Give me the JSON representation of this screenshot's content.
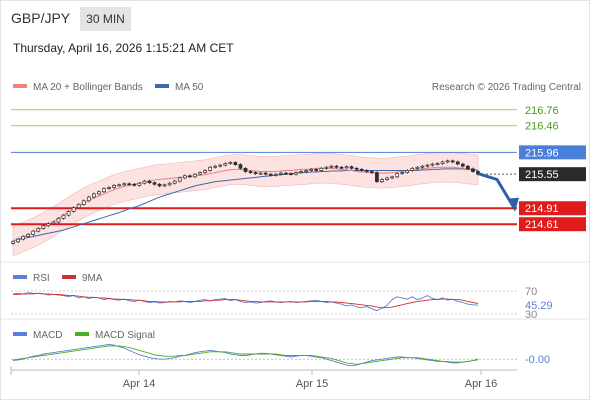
{
  "header": {
    "pair": "GBP/JPY",
    "timeframe": "30 MIN",
    "datetime": "Thursday, April 16, 2026 1:15:21 AM CET"
  },
  "legend": {
    "ma20_label": "MA 20 + Bollinger Bands",
    "ma50_label": "MA 50",
    "credit": "Research © 2026 Trading Central",
    "rsi_label": "RSI",
    "rsi_ma_label": "9MA",
    "macd_label": "MACD",
    "macd_signal_label": "MACD Signal"
  },
  "colors": {
    "ma20": "#f08080",
    "ma50": "#3f69a8",
    "bollinger_fill": "#fde2e2",
    "candle": "#2e2e2e",
    "resistance": "#8fcf6b",
    "resistance_text": "#4a9a1c",
    "pivot": "#4a7fd9",
    "support": "#e01b1b",
    "arrow": "#2e5fa8",
    "rsi": "#5a7fd6",
    "rsi_ma": "#d23030",
    "macd": "#5a7fd6",
    "macd_signal": "#4caf20"
  },
  "chart_data": [
    {
      "type": "candlestick",
      "symbol": "GBP/JPY",
      "timeframe": "30 MIN",
      "x_ticks": [
        "Apr 14",
        "Apr 15",
        "Apr 16"
      ],
      "ylim": [
        213.9,
        217.0
      ],
      "levels": [
        {
          "value": 216.76,
          "label": "216.76",
          "kind": "resistance"
        },
        {
          "value": 216.46,
          "label": "216.46",
          "kind": "resistance"
        },
        {
          "value": 215.96,
          "label": "215.96",
          "kind": "pivot"
        },
        {
          "value": 215.55,
          "label": "215.55",
          "kind": "last"
        },
        {
          "value": 214.91,
          "label": "214.91",
          "kind": "support"
        },
        {
          "value": 214.61,
          "label": "214.61",
          "kind": "support"
        }
      ],
      "forecast_path": [
        [
          0,
          215.55
        ],
        [
          0.5,
          215.45
        ],
        [
          1,
          214.92
        ]
      ],
      "close": [
        214.28,
        214.33,
        214.38,
        214.42,
        214.48,
        214.53,
        214.58,
        214.62,
        214.65,
        214.72,
        214.78,
        214.85,
        214.92,
        214.98,
        215.05,
        215.12,
        215.18,
        215.22,
        215.28,
        215.3,
        215.34,
        215.35,
        215.37,
        215.36,
        215.34,
        215.38,
        215.42,
        215.39,
        215.36,
        215.33,
        215.35,
        215.38,
        215.42,
        215.48,
        215.52,
        215.5,
        215.55,
        215.58,
        215.62,
        215.68,
        215.7,
        215.72,
        215.75,
        215.77,
        215.73,
        215.66,
        215.6,
        215.58,
        215.56,
        215.57,
        215.55,
        215.53,
        215.55,
        215.57,
        215.56,
        215.55,
        215.58,
        215.6,
        215.62,
        215.64,
        215.62,
        215.66,
        215.68,
        215.7,
        215.68,
        215.67,
        215.69,
        215.66,
        215.64,
        215.62,
        215.6,
        215.58,
        215.41,
        215.45,
        215.48,
        215.5,
        215.56,
        215.58,
        215.62,
        215.66,
        215.68,
        215.7,
        215.72,
        215.74,
        215.75,
        215.78,
        215.8,
        215.78,
        215.74,
        215.7,
        215.65,
        215.6,
        215.55
      ],
      "ma20": [
        214.3,
        214.33,
        214.37,
        214.41,
        214.45,
        214.5,
        214.55,
        214.6,
        214.66,
        214.72,
        214.78,
        214.84,
        214.9,
        214.96,
        215.01,
        215.06,
        215.1,
        215.14,
        215.18,
        215.22,
        215.26,
        215.29,
        215.32,
        215.34,
        215.36,
        215.38,
        215.4,
        215.42,
        215.44,
        215.45,
        215.46,
        215.47,
        215.48,
        215.49,
        215.5,
        215.51,
        215.52,
        215.53,
        215.54,
        215.56,
        215.58,
        215.6,
        215.62,
        215.63,
        215.64,
        215.64,
        215.63,
        215.62,
        215.61,
        215.6,
        215.6,
        215.6,
        215.6,
        215.61,
        215.62,
        215.62,
        215.63,
        215.64,
        215.64,
        215.65,
        215.66,
        215.66,
        215.66,
        215.66,
        215.65,
        215.64,
        215.63,
        215.62,
        215.6,
        215.59,
        215.58,
        215.58,
        215.57,
        215.57,
        215.57,
        215.58,
        215.59,
        215.6,
        215.61,
        215.62,
        215.64,
        215.65,
        215.66,
        215.67,
        215.68,
        215.68,
        215.68,
        215.68,
        215.67,
        215.66,
        215.65,
        215.64,
        215.63
      ],
      "ma50": [
        214.3,
        214.32,
        214.34,
        214.36,
        214.38,
        214.4,
        214.42,
        214.44,
        214.46,
        214.48,
        214.5,
        214.53,
        214.56,
        214.59,
        214.62,
        214.65,
        214.68,
        214.71,
        214.74,
        214.77,
        214.8,
        214.83,
        214.86,
        214.9,
        214.93,
        214.96,
        215.0,
        215.04,
        215.08,
        215.12,
        215.15,
        215.18,
        215.21,
        215.24,
        215.27,
        215.3,
        215.33,
        215.35,
        215.37,
        215.39,
        215.41,
        215.42,
        215.43,
        215.44,
        215.45,
        215.46,
        215.47,
        215.48,
        215.49,
        215.5,
        215.51,
        215.52,
        215.53,
        215.54,
        215.55,
        215.56,
        215.57,
        215.58,
        215.58,
        215.59,
        215.59,
        215.6,
        215.6,
        215.61,
        215.61,
        215.61,
        215.62,
        215.62,
        215.62,
        215.62,
        215.62,
        215.62,
        215.62,
        215.62,
        215.62,
        215.62,
        215.62,
        215.62,
        215.62,
        215.62,
        215.62,
        215.63,
        215.63,
        215.64,
        215.64,
        215.65,
        215.65,
        215.65,
        215.65,
        215.65,
        215.64,
        215.63,
        215.62
      ],
      "bb_width": 0.28
    },
    {
      "type": "line",
      "title": "RSI",
      "ylim": [
        30,
        70
      ],
      "y_ticks": [
        70,
        30
      ],
      "last_value": 45.29,
      "last_label": "45.29",
      "series": [
        {
          "name": "RSI",
          "values": [
            65,
            66,
            65,
            67,
            66,
            66,
            65,
            63,
            64,
            63,
            62,
            60,
            62,
            58,
            60,
            57,
            59,
            58,
            55,
            57,
            55,
            54,
            56,
            53,
            52,
            54,
            52,
            50,
            51,
            49,
            50,
            52,
            51,
            53,
            52,
            50,
            52,
            54,
            55,
            53,
            55,
            56,
            57,
            53,
            55,
            52,
            50,
            51,
            49,
            50,
            52,
            53,
            51,
            50,
            51,
            52,
            50,
            51,
            52,
            53,
            54,
            52,
            50,
            51,
            49,
            47,
            44,
            46,
            42,
            41,
            43,
            39,
            36,
            40,
            45,
            55,
            60,
            58,
            56,
            60,
            55,
            58,
            62,
            57,
            55,
            58,
            54,
            56,
            52,
            50,
            47,
            46,
            45.29
          ]
        },
        {
          "name": "9MA",
          "values": [
            64,
            64,
            65,
            65,
            65,
            66,
            65,
            65,
            64,
            64,
            63,
            62,
            62,
            61,
            60,
            59,
            59,
            58,
            58,
            57,
            56,
            56,
            55,
            55,
            54,
            54,
            53,
            52,
            52,
            51,
            51,
            51,
            51,
            51,
            52,
            52,
            52,
            52,
            53,
            53,
            54,
            54,
            55,
            55,
            55,
            54,
            53,
            52,
            52,
            51,
            51,
            51,
            51,
            51,
            51,
            51,
            51,
            51,
            51,
            52,
            52,
            52,
            52,
            51,
            51,
            50,
            49,
            48,
            47,
            46,
            45,
            44,
            42,
            41,
            41,
            42,
            44,
            46,
            48,
            50,
            52,
            53,
            54,
            55,
            55,
            56,
            56,
            55,
            55,
            54,
            52,
            50,
            48
          ]
        }
      ]
    },
    {
      "type": "line",
      "title": "MACD",
      "ylim": [
        -0.12,
        0.22
      ],
      "last_label": "-0.00",
      "series": [
        {
          "name": "MACD",
          "values": [
            -0.02,
            -0.01,
            0.0,
            0.02,
            0.04,
            0.05,
            0.07,
            0.08,
            0.09,
            0.1,
            0.11,
            0.12,
            0.13,
            0.14,
            0.15,
            0.16,
            0.17,
            0.18,
            0.19,
            0.2,
            0.19,
            0.17,
            0.15,
            0.12,
            0.09,
            0.06,
            0.04,
            0.02,
            0.01,
            0.0,
            0.0,
            0.01,
            0.02,
            0.04,
            0.05,
            0.07,
            0.09,
            0.1,
            0.11,
            0.12,
            0.11,
            0.1,
            0.09,
            0.07,
            0.06,
            0.05,
            0.05,
            0.06,
            0.07,
            0.08,
            0.08,
            0.07,
            0.06,
            0.05,
            0.04,
            0.03,
            0.04,
            0.05,
            0.05,
            0.04,
            0.03,
            0.02,
            0.0,
            -0.02,
            -0.04,
            -0.06,
            -0.08,
            -0.09,
            -0.08,
            -0.06,
            -0.04,
            -0.02,
            -0.01,
            0.0,
            0.01,
            0.02,
            0.03,
            0.03,
            0.02,
            0.02,
            0.01,
            0.0,
            -0.01,
            -0.02,
            -0.03,
            -0.03,
            -0.04,
            -0.05,
            -0.05,
            -0.04,
            -0.03,
            -0.02,
            0.0
          ]
        },
        {
          "name": "MACD Signal",
          "values": [
            -0.01,
            0.0,
            0.01,
            0.02,
            0.03,
            0.04,
            0.05,
            0.06,
            0.07,
            0.08,
            0.09,
            0.1,
            0.11,
            0.12,
            0.13,
            0.14,
            0.15,
            0.16,
            0.17,
            0.18,
            0.18,
            0.18,
            0.17,
            0.16,
            0.14,
            0.12,
            0.1,
            0.08,
            0.06,
            0.05,
            0.04,
            0.04,
            0.04,
            0.05,
            0.05,
            0.06,
            0.07,
            0.08,
            0.09,
            0.1,
            0.1,
            0.1,
            0.1,
            0.09,
            0.08,
            0.07,
            0.07,
            0.07,
            0.07,
            0.07,
            0.07,
            0.07,
            0.07,
            0.06,
            0.05,
            0.05,
            0.05,
            0.05,
            0.05,
            0.05,
            0.04,
            0.03,
            0.02,
            0.01,
            -0.01,
            -0.03,
            -0.05,
            -0.06,
            -0.07,
            -0.06,
            -0.05,
            -0.04,
            -0.03,
            -0.02,
            -0.01,
            0.0,
            0.01,
            0.02,
            0.02,
            0.02,
            0.02,
            0.01,
            0.0,
            -0.01,
            -0.02,
            -0.03,
            -0.03,
            -0.04,
            -0.04,
            -0.04,
            -0.03,
            -0.02,
            -0.01
          ]
        }
      ]
    }
  ]
}
